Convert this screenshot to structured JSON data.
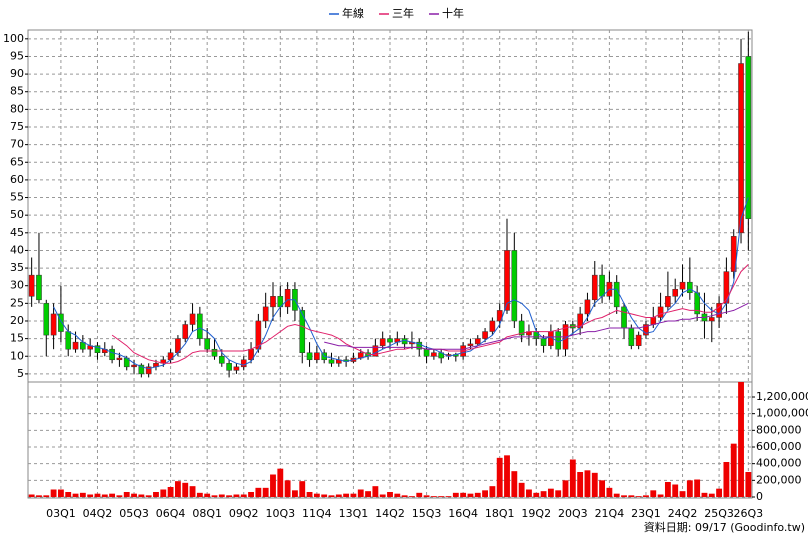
{
  "chart_data": [
    {
      "type": "candlestick",
      "categories": [
        null,
        null,
        null,
        null,
        "03Q1",
        null,
        null,
        null,
        null,
        "04Q2",
        null,
        null,
        null,
        null,
        "05Q3",
        null,
        null,
        null,
        null,
        "06Q4",
        null,
        null,
        null,
        null,
        "08Q1",
        null,
        null,
        null,
        null,
        "09Q2",
        null,
        null,
        null,
        null,
        "10Q3",
        null,
        null,
        null,
        null,
        "11Q4",
        null,
        null,
        null,
        null,
        "13Q1",
        null,
        null,
        null,
        null,
        "14Q2",
        null,
        null,
        null,
        null,
        "15Q3",
        null,
        null,
        null,
        null,
        "16Q4",
        null,
        null,
        null,
        null,
        "18Q1",
        null,
        null,
        null,
        null,
        "19Q2",
        null,
        null,
        null,
        null,
        "20Q3",
        null,
        null,
        null,
        null,
        "21Q4",
        null,
        null,
        null,
        null,
        "23Q1",
        null,
        null,
        null,
        null,
        "24Q2",
        null,
        null,
        null,
        null,
        "25Q3",
        null,
        null,
        null,
        "26Q3"
      ],
      "open": [
        27,
        33,
        25,
        16,
        22,
        17,
        12,
        14,
        12,
        13,
        11,
        12,
        9,
        9.5,
        7,
        7.5,
        5,
        7,
        8,
        9,
        11,
        15,
        19,
        22,
        15,
        12,
        10,
        8,
        6,
        7,
        9,
        12,
        20,
        24,
        27,
        24,
        29,
        23,
        11,
        9,
        11,
        9,
        8,
        9,
        8.5,
        9.5,
        11,
        10,
        13,
        15,
        14,
        15,
        13.5,
        14,
        12,
        10,
        11,
        10,
        10.5,
        10,
        13,
        13.5,
        15,
        17,
        20,
        23,
        40,
        20,
        16,
        17,
        15,
        13,
        17,
        12,
        19,
        18,
        22,
        26,
        33,
        27,
        31,
        24,
        18,
        13,
        16,
        19,
        21,
        24,
        27,
        29,
        31,
        28,
        22,
        20,
        21,
        25,
        34,
        45,
        95
      ],
      "high": [
        38,
        45,
        26,
        25,
        30,
        19,
        17,
        16,
        15,
        14,
        14,
        13,
        11,
        10,
        9,
        8,
        8,
        9,
        10,
        12,
        16,
        20,
        25,
        24,
        18,
        15,
        12,
        9,
        8,
        10,
        14,
        22,
        28,
        31,
        30,
        31,
        31,
        24,
        14,
        13,
        12,
        11,
        10,
        10,
        11,
        12,
        12,
        15,
        17,
        16,
        17,
        16,
        17,
        15,
        13,
        12,
        12,
        11,
        11,
        14,
        15,
        16,
        18,
        21,
        25,
        49,
        45,
        22,
        19,
        18,
        16,
        19,
        18,
        20,
        20,
        24,
        28,
        37,
        36,
        34,
        33,
        25,
        19,
        17,
        20,
        24,
        28,
        34,
        32,
        36,
        38,
        30,
        28,
        24,
        27,
        38,
        46,
        100,
        102
      ],
      "low": [
        24,
        25,
        10,
        12,
        14,
        10,
        11,
        11,
        10,
        9,
        10,
        8,
        7,
        6,
        5,
        4,
        4,
        6,
        7,
        8,
        10,
        14,
        17,
        13,
        11,
        9,
        7,
        4,
        5,
        6,
        8,
        11,
        18,
        20,
        21,
        22,
        20,
        8,
        7,
        8,
        8,
        7,
        7,
        7,
        8,
        9,
        9,
        10,
        12,
        12,
        13,
        12,
        12,
        10,
        8,
        9,
        8,
        9,
        8.5,
        9,
        12,
        13,
        14,
        16,
        18,
        22,
        18,
        14,
        13,
        13,
        11,
        12,
        10,
        10,
        16,
        16,
        20,
        24,
        25,
        26,
        22,
        15,
        12,
        12,
        15,
        18,
        20,
        23,
        25,
        27,
        26,
        20,
        15,
        14,
        18,
        22,
        32,
        42,
        40
      ],
      "close": [
        33,
        26,
        16,
        22,
        17,
        12,
        14,
        12,
        13,
        11,
        12,
        9,
        9.5,
        7,
        7.5,
        5,
        7,
        8,
        9,
        11,
        15,
        19,
        22,
        15,
        12,
        10,
        8,
        6,
        7,
        9,
        12,
        20,
        24,
        27,
        24,
        29,
        23,
        11,
        9,
        11,
        9,
        8,
        9,
        8.5,
        9.5,
        11,
        10,
        13,
        15,
        14,
        15,
        13.5,
        14,
        12,
        10,
        11,
        9.5,
        10.5,
        10,
        13,
        13.5,
        15,
        17,
        20,
        23,
        40,
        20,
        16,
        17,
        15,
        13,
        17,
        12,
        19,
        18,
        22,
        26,
        33,
        27,
        31,
        24,
        18,
        13,
        16,
        19,
        21,
        24,
        27,
        29,
        31,
        28,
        22,
        20,
        21,
        25,
        34,
        44,
        93,
        49
      ],
      "up_color": "#ff0000",
      "down_color": "#00cc00",
      "wick_color": "#000000",
      "ylim": [
        2.7,
        102.5
      ],
      "yticks": [
        5,
        10,
        15,
        20,
        25,
        30,
        35,
        40,
        45,
        50,
        55,
        60,
        65,
        70,
        75,
        80,
        85,
        90,
        95,
        100
      ],
      "grid": true,
      "series": [
        {
          "name": "年線",
          "color": "#1f5fd0",
          "values": [
            null,
            null,
            null,
            24,
            20,
            17,
            16,
            14,
            13,
            12.5,
            12,
            11,
            10.5,
            9.5,
            8,
            7,
            6.5,
            7,
            7.5,
            9,
            11,
            13.5,
            17,
            18,
            17,
            15,
            11,
            9,
            8,
            7.5,
            8.5,
            12,
            16,
            21,
            24,
            26,
            26,
            22,
            18,
            13.5,
            10,
            9.5,
            9,
            8.5,
            9,
            9.5,
            10,
            11,
            12,
            13,
            14,
            14.5,
            14,
            13.5,
            12.5,
            12,
            11,
            10,
            10.5,
            11,
            11.5,
            13,
            14.5,
            16,
            19,
            25,
            26,
            25,
            23,
            17,
            15,
            15.5,
            14,
            15,
            16.5,
            18,
            21,
            25,
            27,
            29,
            29,
            25,
            21,
            18,
            16.5,
            17,
            20,
            23,
            25,
            28,
            29,
            28,
            25,
            23,
            22,
            25,
            31,
            49,
            55
          ]
        },
        {
          "name": "三年",
          "color": "#e0206a",
          "values": [
            null,
            null,
            null,
            null,
            null,
            null,
            null,
            null,
            null,
            null,
            null,
            16,
            14.5,
            13,
            11,
            10,
            9,
            8.5,
            8,
            8,
            8.5,
            9.5,
            11,
            11.5,
            11.5,
            11.5,
            11.5,
            11.5,
            11.5,
            11.5,
            12,
            13,
            14,
            15.5,
            17,
            18.5,
            19,
            18.5,
            17.5,
            17,
            16.5,
            16,
            15,
            13.5,
            12.5,
            11.5,
            10.5,
            10.5,
            11,
            11.5,
            12,
            12,
            12.5,
            12.5,
            12,
            12,
            12,
            11.5,
            11.5,
            11.5,
            12,
            12.5,
            13,
            13.5,
            14,
            15.5,
            16,
            16.5,
            17,
            17,
            17,
            17,
            17.5,
            18,
            18.5,
            18.5,
            19.5,
            20.5,
            21,
            22,
            23,
            22.5,
            22,
            21.5,
            21,
            21,
            22,
            22.5,
            23,
            23.5,
            23,
            23,
            22.5,
            22.5,
            24,
            26,
            30,
            34,
            36
          ]
        },
        {
          "name": "十年",
          "color": "#8a1fa8",
          "values": [
            null,
            null,
            null,
            null,
            null,
            null,
            null,
            null,
            null,
            null,
            null,
            null,
            null,
            null,
            null,
            null,
            null,
            null,
            null,
            null,
            null,
            null,
            null,
            null,
            null,
            null,
            null,
            null,
            null,
            null,
            null,
            null,
            null,
            null,
            null,
            null,
            null,
            null,
            null,
            null,
            14,
            13.5,
            13,
            13,
            12.5,
            12.5,
            12.5,
            12.5,
            12.5,
            12.5,
            12.5,
            12.5,
            12.5,
            12.5,
            12,
            12,
            12,
            12,
            12,
            12,
            12.5,
            13,
            13.5,
            14,
            14.5,
            15,
            15.5,
            15.5,
            15.5,
            15.5,
            15.5,
            15.5,
            15.5,
            15.5,
            16,
            16.5,
            17,
            17,
            17.5,
            18,
            18,
            18,
            18,
            18,
            18.5,
            19,
            19.5,
            20,
            20,
            20.5,
            20.5,
            21,
            21,
            21.5,
            22,
            22.5,
            23,
            24,
            25
          ]
        }
      ]
    },
    {
      "type": "bar",
      "color": "#ee0000",
      "values": [
        30000,
        20000,
        20000,
        90000,
        90000,
        60000,
        40000,
        50000,
        30000,
        40000,
        30000,
        40000,
        20000,
        60000,
        40000,
        30000,
        20000,
        60000,
        90000,
        120000,
        190000,
        170000,
        130000,
        50000,
        40000,
        20000,
        30000,
        20000,
        30000,
        30000,
        60000,
        110000,
        110000,
        270000,
        340000,
        200000,
        80000,
        190000,
        60000,
        40000,
        30000,
        20000,
        30000,
        40000,
        40000,
        90000,
        70000,
        130000,
        30000,
        60000,
        40000,
        20000,
        10000,
        50000,
        20000,
        10000,
        10000,
        10000,
        50000,
        50000,
        40000,
        50000,
        80000,
        130000,
        470000,
        500000,
        310000,
        170000,
        90000,
        50000,
        70000,
        100000,
        80000,
        200000,
        450000,
        300000,
        320000,
        290000,
        200000,
        110000,
        40000,
        20000,
        20000,
        10000,
        20000,
        80000,
        30000,
        180000,
        150000,
        70000,
        200000,
        210000,
        50000,
        40000,
        100000,
        420000,
        640000,
        1380000,
        300000
      ],
      "ylim": [
        0,
        1380000
      ],
      "yticks": [
        0,
        {
          "value": 200000,
          "label": "200,000"
        },
        {
          "value": 400000,
          "label": "400,000"
        },
        {
          "value": 600000,
          "label": "600,000"
        },
        {
          "value": 800000,
          "label": "800,000"
        },
        {
          "value": 1000000,
          "label": "1,000,000"
        },
        {
          "value": 1200000,
          "label": "1,200,000"
        }
      ],
      "grid": true
    }
  ],
  "footer": "資料日期: 09/17 (Goodinfo.tw)"
}
